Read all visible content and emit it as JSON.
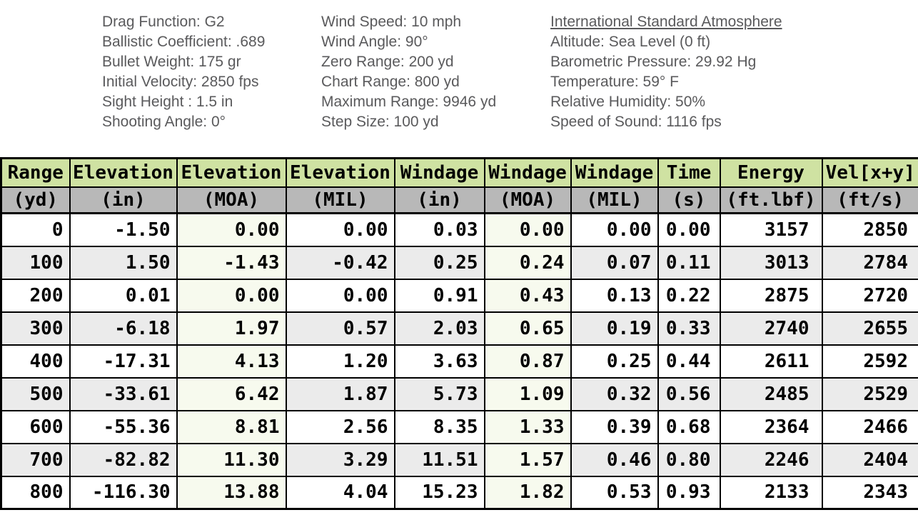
{
  "info": {
    "projectile": {
      "lines": [
        "Drag Function: G2",
        "Ballistic Coefficient: .689",
        "Bullet Weight: 175 gr",
        "Initial Velocity: 2850 fps",
        "Sight Height : 1.5 in",
        "Shooting Angle: 0°"
      ]
    },
    "conditions": {
      "lines": [
        "Wind Speed: 10 mph",
        "Wind Angle: 90°",
        "Zero Range: 200 yd",
        "Chart Range: 800 yd",
        "Maximum Range: 9946 yd",
        "Step Size: 100 yd"
      ]
    },
    "atmosphere": {
      "title": "International Standard Atmosphere",
      "lines": [
        "Altitude: Sea Level (0 ft)",
        "Barometric Pressure: 29.92 Hg",
        "Temperature: 59° F",
        "Relative Humidity: 50%",
        "Speed of Sound: 1116 fps"
      ]
    }
  },
  "table": {
    "columns": [
      {
        "label": "Range",
        "unit": "(yd)"
      },
      {
        "label": "Elevation",
        "unit": "(in)"
      },
      {
        "label": "Elevation",
        "unit": "(MOA)"
      },
      {
        "label": "Elevation",
        "unit": "(MIL)"
      },
      {
        "label": "Windage",
        "unit": "(in)"
      },
      {
        "label": "Windage",
        "unit": "(MOA)"
      },
      {
        "label": "Windage",
        "unit": "(MIL)"
      },
      {
        "label": "Time",
        "unit": "(s)"
      },
      {
        "label": "Energy",
        "unit": "(ft.lbf)"
      },
      {
        "label": "Vel[x+y]",
        "unit": "(ft/s)"
      }
    ],
    "rows": [
      [
        "0",
        "-1.50",
        "0.00",
        "0.00",
        "0.03",
        "0.00",
        "0.00",
        "0.00",
        "3157",
        "2850"
      ],
      [
        "100",
        "1.50",
        "-1.43",
        "-0.42",
        "0.25",
        "0.24",
        "0.07",
        "0.11",
        "3013",
        "2784"
      ],
      [
        "200",
        "0.01",
        "0.00",
        "0.00",
        "0.91",
        "0.43",
        "0.13",
        "0.22",
        "2875",
        "2720"
      ],
      [
        "300",
        "-6.18",
        "1.97",
        "0.57",
        "2.03",
        "0.65",
        "0.19",
        "0.33",
        "2740",
        "2655"
      ],
      [
        "400",
        "-17.31",
        "4.13",
        "1.20",
        "3.63",
        "0.87",
        "0.25",
        "0.44",
        "2611",
        "2592"
      ],
      [
        "500",
        "-33.61",
        "6.42",
        "1.87",
        "5.73",
        "1.09",
        "0.32",
        "0.56",
        "2485",
        "2529"
      ],
      [
        "600",
        "-55.36",
        "8.81",
        "2.56",
        "8.35",
        "1.33",
        "0.39",
        "0.68",
        "2364",
        "2466"
      ],
      [
        "700",
        "-82.82",
        "11.30",
        "3.29",
        "11.51",
        "1.57",
        "0.46",
        "0.80",
        "2246",
        "2404"
      ],
      [
        "800",
        "-116.30",
        "13.88",
        "4.04",
        "15.23",
        "1.82",
        "0.53",
        "0.93",
        "2133",
        "2343"
      ]
    ],
    "tinted_column_indexes": [
      2,
      5
    ]
  },
  "colors": {
    "header_green": "#cfe2a2",
    "units_gray": "#b8b8b8",
    "row_stripe": "#ebebeb",
    "moa_tint": "#f7faee",
    "grid_border": "#000000",
    "info_text": "#5a5a5c"
  },
  "chart_data": {
    "type": "table",
    "columns": [
      "Range (yd)",
      "Elevation (in)",
      "Elevation (MOA)",
      "Elevation (MIL)",
      "Windage (in)",
      "Windage (MOA)",
      "Windage (MIL)",
      "Time (s)",
      "Energy (ft.lbf)",
      "Vel[x+y] (ft/s)"
    ],
    "rows": [
      [
        0,
        -1.5,
        0.0,
        0.0,
        0.03,
        0.0,
        0.0,
        0.0,
        3157,
        2850
      ],
      [
        100,
        1.5,
        -1.43,
        -0.42,
        0.25,
        0.24,
        0.07,
        0.11,
        3013,
        2784
      ],
      [
        200,
        0.01,
        0.0,
        0.0,
        0.91,
        0.43,
        0.13,
        0.22,
        2875,
        2720
      ],
      [
        300,
        -6.18,
        1.97,
        0.57,
        2.03,
        0.65,
        0.19,
        0.33,
        2740,
        2655
      ],
      [
        400,
        -17.31,
        4.13,
        1.2,
        3.63,
        0.87,
        0.25,
        0.44,
        2611,
        2592
      ],
      [
        500,
        -33.61,
        6.42,
        1.87,
        5.73,
        1.09,
        0.32,
        0.56,
        2485,
        2529
      ],
      [
        600,
        -55.36,
        8.81,
        2.56,
        8.35,
        1.33,
        0.39,
        0.68,
        2364,
        2466
      ],
      [
        700,
        -82.82,
        11.3,
        3.29,
        11.51,
        1.57,
        0.46,
        0.8,
        2246,
        2404
      ],
      [
        800,
        -116.3,
        13.88,
        4.04,
        15.23,
        1.82,
        0.53,
        0.93,
        2133,
        2343
      ]
    ]
  }
}
